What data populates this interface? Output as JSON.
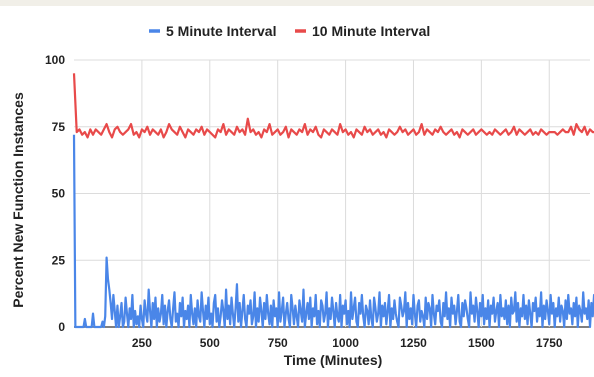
{
  "chart_data": {
    "type": "line",
    "title": "",
    "xlabel": "Time (Minutes)",
    "ylabel": "Percent New Function Instances",
    "xlim": [
      0,
      1900
    ],
    "ylim": [
      0,
      100
    ],
    "x_ticks": [
      250,
      500,
      750,
      1000,
      1250,
      1500,
      1750
    ],
    "y_ticks": [
      0,
      25,
      50,
      75,
      100
    ],
    "grid": true,
    "legend_position": "top",
    "series": [
      {
        "name": "5 Minute Interval",
        "color": "#4a86e8",
        "step": 5,
        "values": [
          72,
          0,
          0,
          0,
          0,
          0,
          0,
          0,
          3,
          0,
          0,
          0,
          0,
          0,
          5,
          0,
          0,
          0,
          0,
          0,
          0,
          2,
          0,
          4,
          26,
          18,
          14,
          9,
          3,
          12,
          6,
          0,
          8,
          0,
          4,
          9,
          0,
          2,
          11,
          5,
          0,
          7,
          3,
          12,
          0,
          6,
          1,
          4,
          0,
          8,
          3,
          0,
          10,
          5,
          2,
          14,
          6,
          0,
          9,
          3,
          11,
          0,
          7,
          2,
          5,
          12,
          1,
          8,
          0,
          6,
          10,
          3,
          0,
          7,
          13,
          2,
          5,
          0,
          9,
          4,
          11,
          0,
          6,
          3,
          8,
          0,
          12,
          5,
          1,
          7,
          0,
          10,
          4,
          2,
          13,
          6,
          0,
          8,
          3,
          11,
          1,
          5,
          0,
          9,
          12,
          2,
          7,
          0,
          4,
          10,
          6,
          0,
          14,
          3,
          8,
          1,
          11,
          5,
          0,
          7,
          16,
          2,
          9,
          0,
          6,
          12,
          3,
          0,
          8,
          5,
          10,
          1,
          4,
          13,
          0,
          7,
          2,
          11,
          6,
          0,
          9,
          3,
          12,
          5,
          1,
          8,
          0,
          10,
          4,
          7,
          0,
          13,
          2,
          6,
          11,
          0,
          5,
          9,
          3,
          0,
          12,
          7,
          1,
          8,
          4,
          0,
          10,
          6,
          2,
          14,
          0,
          5,
          9,
          3,
          11,
          0,
          7,
          4,
          12,
          1,
          6,
          0,
          10,
          8,
          2,
          5,
          13,
          0,
          7,
          3,
          11,
          6,
          0,
          9,
          4,
          2,
          12,
          0,
          8,
          5,
          10,
          1,
          6,
          0,
          13,
          3,
          7,
          11,
          2,
          0,
          9,
          5,
          12,
          4,
          0,
          8,
          6,
          1,
          10,
          3,
          0,
          11,
          7,
          2,
          5,
          13,
          0,
          8,
          4,
          9,
          1,
          6,
          12,
          0,
          7,
          3,
          10,
          5,
          2,
          0,
          11,
          8,
          4,
          6,
          13,
          0,
          9,
          3,
          7,
          1,
          12,
          5,
          0,
          8,
          10,
          2,
          6,
          4,
          0,
          11,
          3,
          9,
          7,
          0,
          12,
          5,
          1,
          8,
          6,
          10,
          2,
          0,
          9,
          4,
          13,
          3,
          7,
          0,
          11,
          5,
          8,
          1,
          6,
          12,
          2,
          0,
          9,
          4,
          10,
          7,
          3,
          0,
          13,
          5,
          8,
          2,
          11,
          6,
          0,
          9,
          4,
          12,
          1,
          7,
          3,
          10,
          0,
          8,
          5,
          11,
          2,
          6,
          9,
          0,
          12,
          4,
          7,
          3,
          10,
          1,
          8,
          0,
          11,
          5,
          6,
          13,
          2,
          9,
          0,
          7,
          4,
          12,
          3,
          8,
          1,
          10,
          5,
          0,
          9,
          6,
          11,
          2,
          7,
          4,
          13,
          0,
          8,
          3,
          10,
          6,
          1,
          12,
          5,
          9,
          0,
          7,
          4,
          11,
          2,
          8,
          6,
          0,
          10,
          3,
          12,
          5,
          7,
          1,
          9,
          4,
          11,
          0,
          8,
          6,
          2,
          13,
          5,
          7,
          3,
          10,
          0,
          9,
          4,
          12,
          6,
          1,
          8,
          3,
          11,
          5,
          7,
          2,
          6,
          9
        ]
      },
      {
        "name": "10 Minute Interval",
        "color": "#e84a4a",
        "step": 10,
        "values": [
          95,
          73,
          74,
          72,
          73,
          71,
          74,
          72,
          74,
          73,
          72,
          74,
          76,
          73,
          71,
          74,
          75,
          73,
          72,
          73,
          74,
          76,
          72,
          73,
          71,
          74,
          73,
          75,
          72,
          74,
          73,
          72,
          74,
          71,
          73,
          76,
          74,
          73,
          72,
          75,
          73,
          71,
          74,
          73,
          72,
          74,
          73,
          75,
          72,
          74,
          73,
          72,
          71,
          74,
          73,
          76,
          72,
          74,
          73,
          72,
          75,
          73,
          74,
          72,
          78,
          73,
          74,
          72,
          73,
          71,
          74,
          73,
          76,
          72,
          73,
          74,
          72,
          73,
          75,
          71,
          74,
          73,
          72,
          74,
          73,
          76,
          72,
          74,
          73,
          75,
          72,
          71,
          74,
          73,
          72,
          74,
          73,
          72,
          76,
          73,
          74,
          72,
          73,
          71,
          74,
          73,
          72,
          75,
          73,
          74,
          72,
          73,
          74,
          72,
          73,
          71,
          74,
          73,
          72,
          73,
          75,
          73,
          74,
          72,
          73,
          74,
          72,
          73,
          76,
          72,
          74,
          73,
          72,
          74,
          73,
          75,
          73,
          72,
          73,
          74,
          72,
          73,
          71,
          74,
          73,
          72,
          73,
          74,
          72,
          73,
          74,
          73,
          72,
          73,
          72,
          74,
          73,
          72,
          73,
          74,
          72,
          73,
          75,
          72,
          74,
          73,
          72,
          73,
          74,
          72,
          73,
          72,
          74,
          73,
          72,
          73,
          73,
          73,
          72,
          73,
          74,
          73,
          73,
          75,
          72,
          76,
          74,
          73,
          75,
          72,
          74,
          73,
          73,
          72
        ]
      }
    ]
  }
}
